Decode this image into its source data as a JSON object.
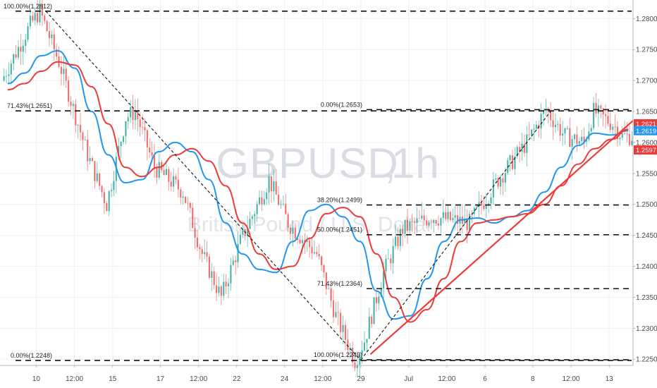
{
  "chart_data": {
    "type": "candlestick",
    "symbol": "GBPUSD",
    "interval": "1h",
    "description": "British Pound / U.S. Dollar",
    "ylim": [
      1.224,
      1.283
    ],
    "y_ticks": [
      1.225,
      1.23,
      1.235,
      1.24,
      1.245,
      1.25,
      1.255,
      1.26,
      1.265,
      1.27,
      1.275,
      1.28
    ],
    "y_tick_labels": [
      "1.2250",
      "1.2300",
      "1.2350",
      "1.2400",
      "1.2450",
      "1.2500",
      "1.2550",
      "1.2600",
      "1.2650",
      "1.2700",
      "1.2750",
      "1.2800"
    ],
    "x_tick_labels": [
      "10",
      "12:00",
      "15",
      "17",
      "12:00",
      "22",
      "24",
      "12:00",
      "29",
      "Jul",
      "12:00",
      "6",
      "8",
      "12:00",
      "13"
    ],
    "x_tick_bars": [
      3,
      7,
      11,
      16,
      20,
      24,
      29,
      33,
      37,
      42,
      46,
      50,
      55,
      59,
      63
    ],
    "n_bars": 66,
    "price_path": [
      [
        0,
        1.27
      ],
      [
        3,
        1.279
      ],
      [
        4,
        1.2812
      ],
      [
        6,
        1.273
      ],
      [
        9,
        1.258
      ],
      [
        11,
        1.25
      ],
      [
        13,
        1.264
      ],
      [
        14,
        1.265
      ],
      [
        16,
        1.256
      ],
      [
        19,
        1.252
      ],
      [
        21,
        1.242
      ],
      [
        23,
        1.235
      ],
      [
        25,
        1.244
      ],
      [
        28,
        1.254
      ],
      [
        30,
        1.247
      ],
      [
        33,
        1.242
      ],
      [
        35,
        1.232
      ],
      [
        37,
        1.2248
      ],
      [
        38,
        1.228
      ],
      [
        40,
        1.239
      ],
      [
        42,
        1.246
      ],
      [
        45,
        1.248
      ],
      [
        49,
        1.247
      ],
      [
        52,
        1.254
      ],
      [
        55,
        1.26
      ],
      [
        57,
        1.2653
      ],
      [
        59,
        1.261
      ],
      [
        61,
        1.26
      ],
      [
        62,
        1.265
      ],
      [
        64,
        1.263
      ],
      [
        65,
        1.261
      ]
    ],
    "series": [
      {
        "name": "",
        "color": "#2196f3",
        "values": [
          1.2695,
          1.2712,
          1.274,
          1.2748,
          1.272,
          1.265,
          1.258,
          1.2535,
          1.254,
          1.2585,
          1.26,
          1.2585,
          1.254,
          1.247,
          1.242,
          1.2395,
          1.239,
          1.244,
          1.249,
          1.25,
          1.248,
          1.244,
          1.236,
          1.2315,
          1.232,
          1.238,
          1.244,
          1.2475,
          1.2478,
          1.247,
          1.248,
          1.249,
          1.252,
          1.256,
          1.2595,
          1.2615,
          1.2612,
          1.2619
        ]
      },
      {
        "name": "",
        "color": "#ef3a3a",
        "values": [
          1.2685,
          1.2695,
          1.2715,
          1.273,
          1.2725,
          1.269,
          1.263,
          1.256,
          1.2545,
          1.256,
          1.258,
          1.259,
          1.257,
          1.253,
          1.247,
          1.242,
          1.2395,
          1.24,
          1.2445,
          1.2485,
          1.2495,
          1.248,
          1.242,
          1.235,
          1.231,
          1.233,
          1.238,
          1.244,
          1.247,
          1.2475,
          1.248,
          1.2485,
          1.25,
          1.253,
          1.2565,
          1.259,
          1.2605,
          1.2621
        ]
      }
    ],
    "ma_span_bars": [
      0,
      65
    ],
    "fib_left": {
      "from": [
        4,
        1.2812
      ],
      "to": [
        37,
        1.2248
      ],
      "levels": [
        {
          "label": "100.00%(1.2812)",
          "price": 1.2812
        },
        {
          "label": "71.43%(1.2651)",
          "price": 1.2651
        },
        {
          "label": "0.00%(1.2248)",
          "price": 1.2248
        }
      ]
    },
    "fib_right": {
      "from": [
        37,
        1.2249
      ],
      "to": [
        57,
        1.2653
      ],
      "levels": [
        {
          "label": "0.00%(1.2653)",
          "price": 1.2653
        },
        {
          "label": "38.20%(1.2499)",
          "price": 1.2499
        },
        {
          "label": "50.00%(1.2451)",
          "price": 1.2451
        },
        {
          "label": "71.43%(1.2364)",
          "price": 1.2364
        },
        {
          "label": "100.00%(1.2249)",
          "price": 1.2249
        }
      ]
    },
    "trendline": {
      "from": [
        38,
        1.2258
      ],
      "to": [
        66,
        1.2642
      ],
      "color": "#ef3a3a"
    },
    "price_badges": [
      {
        "value": "1.2621",
        "price": 1.2621,
        "color": "#ef3a3a"
      },
      {
        "value": "1.2619",
        "price": 1.2619,
        "color": "#2196f3"
      },
      {
        "value": "1.2597",
        "price": 1.2597,
        "color": "#ef3a3a"
      }
    ],
    "candle_colors": {
      "up": "#26a69a",
      "down": "#ef5350"
    },
    "grid": true
  }
}
